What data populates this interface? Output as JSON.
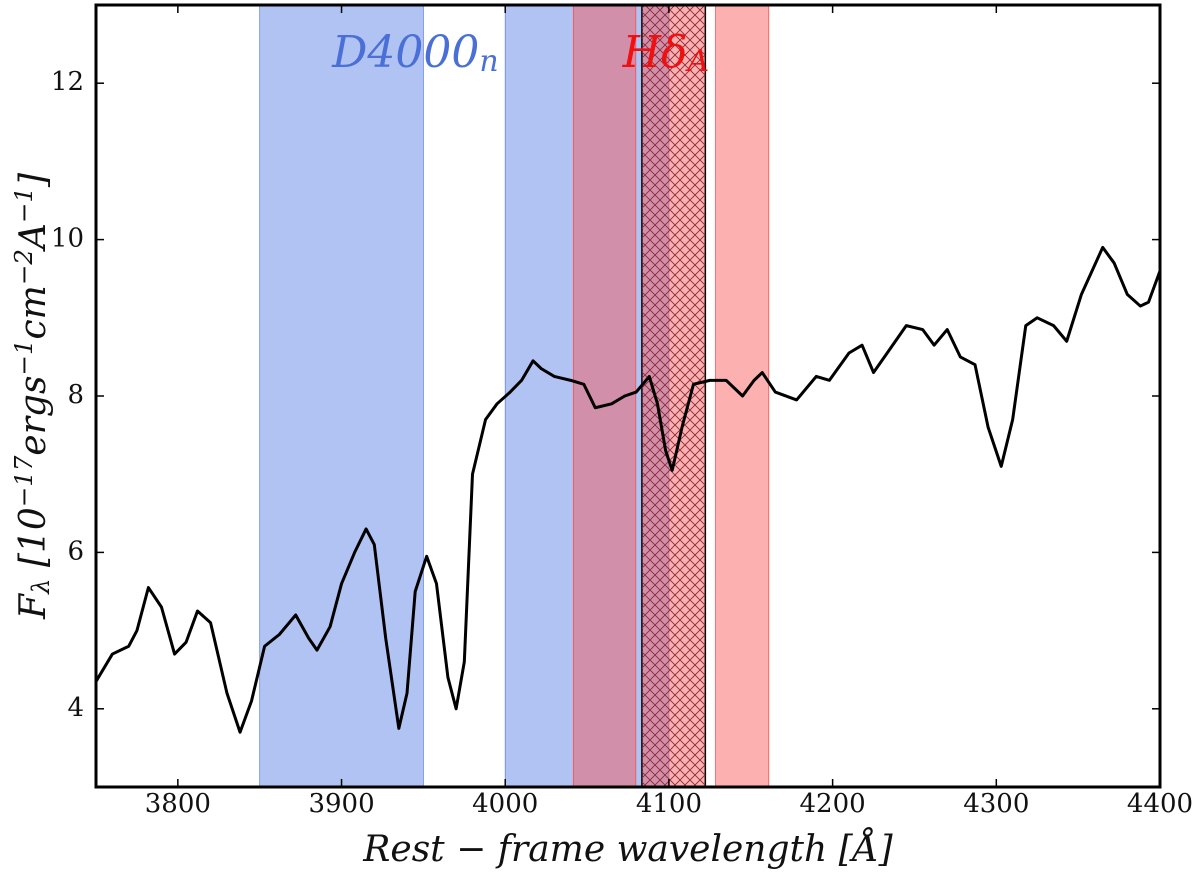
{
  "chart_data": {
    "type": "line",
    "xlabel": [
      {
        "text": "Rest − frame wavelength [Å]"
      }
    ],
    "ylabel": [
      {
        "text": "F"
      },
      {
        "text": "λ",
        "sub": true
      },
      {
        "text": " [10"
      },
      {
        "text": "−17",
        "sup": true
      },
      {
        "text": "ergs"
      },
      {
        "text": "−1",
        "sup": true
      },
      {
        "text": "cm"
      },
      {
        "text": "−2",
        "sup": true
      },
      {
        "text": "A"
      },
      {
        "text": "−1",
        "sup": true
      },
      {
        "text": "]"
      }
    ],
    "annotations": [
      {
        "parts": [
          {
            "text": "D4000"
          },
          {
            "text": "n",
            "sub": true
          }
        ],
        "x": 3950,
        "color": "#4a6fd6"
      },
      {
        "parts": [
          {
            "text": "Hδ"
          },
          {
            "text": "A",
            "sub": true
          }
        ],
        "x": 4103,
        "color": "#ee1111"
      }
    ],
    "shaded_regions": [
      {
        "start": 3850,
        "end": 3950,
        "color": "#6487e6",
        "opacity": 0.5,
        "hatch": false
      },
      {
        "start": 4000,
        "end": 4100,
        "color": "#6487e6",
        "opacity": 0.5,
        "hatch": false
      },
      {
        "start": 4041.6,
        "end": 4079.75,
        "color": "#fa4f4f",
        "opacity": 0.45,
        "hatch": false
      },
      {
        "start": 4083.5,
        "end": 4122.25,
        "color": "#fa4f4f",
        "opacity": 0.45,
        "hatch": true
      },
      {
        "start": 4128.5,
        "end": 4161.0,
        "color": "#fa4f4f",
        "opacity": 0.45,
        "hatch": false
      }
    ],
    "x": [
      3750,
      3760,
      3770,
      3775,
      3782,
      3790,
      3798,
      3805,
      3812,
      3820,
      3830,
      3838,
      3845,
      3853,
      3862,
      3872,
      3880,
      3885,
      3893,
      3900,
      3908,
      3915,
      3920,
      3927,
      3935,
      3940,
      3945,
      3952,
      3958,
      3965,
      3970,
      3975,
      3980,
      3988,
      3995,
      4003,
      4010,
      4017,
      4022,
      4030,
      4040,
      4048,
      4055,
      4065,
      4073,
      4080,
      4088,
      4093,
      4098,
      4102,
      4108,
      4115,
      4125,
      4135,
      4145,
      4152,
      4157,
      4165,
      4178,
      4190,
      4198,
      4210,
      4218,
      4225,
      4235,
      4245,
      4255,
      4262,
      4270,
      4278,
      4287,
      4295,
      4303,
      4310,
      4318,
      4325,
      4335,
      4343,
      4352,
      4365,
      4372,
      4380,
      4388,
      4393,
      4400
    ],
    "series": [
      {
        "color": "#000000",
        "values": [
          4.35,
          4.7,
          4.8,
          5.0,
          5.55,
          5.3,
          4.7,
          4.85,
          5.25,
          5.1,
          4.2,
          3.7,
          4.1,
          4.8,
          4.95,
          5.2,
          4.9,
          4.75,
          5.05,
          5.6,
          6.0,
          6.3,
          6.1,
          4.9,
          3.75,
          4.2,
          5.5,
          5.95,
          5.6,
          4.4,
          4.0,
          4.6,
          7.0,
          7.7,
          7.9,
          8.05,
          8.2,
          8.45,
          8.35,
          8.25,
          8.2,
          8.15,
          7.85,
          7.9,
          8.0,
          8.05,
          8.25,
          7.9,
          7.3,
          7.05,
          7.6,
          8.15,
          8.2,
          8.2,
          8.0,
          8.2,
          8.3,
          8.05,
          7.95,
          8.25,
          8.2,
          8.55,
          8.65,
          8.3,
          8.6,
          8.9,
          8.85,
          8.65,
          8.85,
          8.5,
          8.4,
          7.6,
          7.1,
          7.7,
          8.9,
          9.0,
          8.9,
          8.7,
          9.3,
          9.9,
          9.7,
          9.3,
          9.15,
          9.2,
          9.6
        ]
      }
    ],
    "xlim": [
      3750,
      4400
    ],
    "ylim": [
      3,
      13
    ],
    "xticks": [
      3800,
      3900,
      4000,
      4100,
      4200,
      4300,
      4400
    ],
    "yticks": [
      4,
      6,
      8,
      10,
      12
    ]
  }
}
